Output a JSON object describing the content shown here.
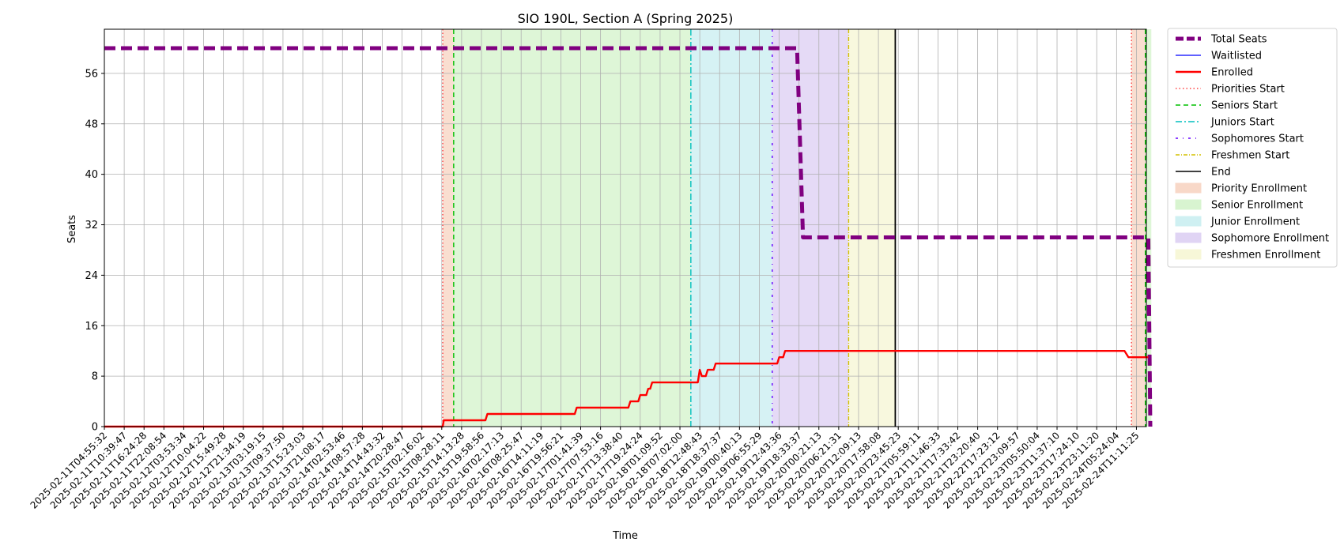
{
  "chart_data": {
    "type": "line",
    "title": "SIO 190L, Section A (Spring 2025)",
    "xlabel": "Time",
    "ylabel": "Seats",
    "ylim": [
      0,
      63
    ],
    "yticks": [
      0,
      8,
      16,
      24,
      32,
      40,
      48,
      56
    ],
    "grid": true,
    "legend_position": "outside-top-right",
    "x_tick_labels": [
      "2025-02-11T04:55:32",
      "2025-02-11T10:39:47",
      "2025-02-11T16:24:28",
      "2025-02-11T22:08:54",
      "2025-02-12T03:53:34",
      "2025-02-12T10:04:22",
      "2025-02-12T15:49:28",
      "2025-02-12T21:34:19",
      "2025-02-13T03:19:15",
      "2025-02-13T09:37:50",
      "2025-02-13T15:23:03",
      "2025-02-13T21:08:17",
      "2025-02-14T02:53:46",
      "2025-02-14T08:57:28",
      "2025-02-14T14:43:32",
      "2025-02-14T20:28:47",
      "2025-02-15T02:16:02",
      "2025-02-15T08:28:11",
      "2025-02-15T14:13:28",
      "2025-02-15T19:58:56",
      "2025-02-16T02:17:13",
      "2025-02-16T08:25:47",
      "2025-02-16T14:11:19",
      "2025-02-16T19:56:21",
      "2025-02-17T01:41:39",
      "2025-02-17T07:53:16",
      "2025-02-17T13:38:40",
      "2025-02-17T19:24:24",
      "2025-02-18T01:09:52",
      "2025-02-18T07:02:00",
      "2025-02-18T12:48:43",
      "2025-02-18T18:37:37",
      "2025-02-19T00:40:13",
      "2025-02-19T06:55:29",
      "2025-02-19T12:43:36",
      "2025-02-19T18:33:37",
      "2025-02-20T00:21:13",
      "2025-02-20T06:21:31",
      "2025-02-20T12:09:13",
      "2025-02-20T17:58:08",
      "2025-02-20T23:45:23",
      "2025-02-21T05:59:11",
      "2025-02-21T11:46:33",
      "2025-02-21T17:33:42",
      "2025-02-21T23:20:40",
      "2025-02-22T17:23:12",
      "2025-02-22T23:09:57",
      "2025-02-23T05:50:04",
      "2025-02-23T11:37:10",
      "2025-02-23T17:24:10",
      "2025-02-23T23:11:20",
      "2025-02-24T05:24:04",
      "2025-02-24T11:11:25"
    ],
    "x_range_ticks": [
      0,
      52.5
    ],
    "series": [
      {
        "name": "Total Seats",
        "color": "#800080",
        "style": "dashed-thick",
        "points": [
          [
            0,
            60
          ],
          [
            34.5,
            60
          ],
          [
            34.9,
            60
          ],
          [
            35.2,
            30
          ],
          [
            52.3,
            30
          ],
          [
            52.6,
            30
          ],
          [
            52.7,
            0
          ]
        ]
      },
      {
        "name": "Waitlisted",
        "color": "#0000ff",
        "style": "solid-thin",
        "points": []
      },
      {
        "name": "Enrolled",
        "color": "#ff0000",
        "style": "solid",
        "points": [
          [
            0,
            0
          ],
          [
            17.05,
            0
          ],
          [
            17.1,
            1
          ],
          [
            19.2,
            1
          ],
          [
            19.3,
            2
          ],
          [
            23.7,
            2
          ],
          [
            23.8,
            3
          ],
          [
            26.4,
            3
          ],
          [
            26.5,
            4
          ],
          [
            26.9,
            4
          ],
          [
            27.0,
            5
          ],
          [
            27.3,
            5
          ],
          [
            27.4,
            6
          ],
          [
            27.5,
            6
          ],
          [
            27.6,
            7
          ],
          [
            29.9,
            7
          ],
          [
            30.0,
            9
          ],
          [
            30.1,
            8
          ],
          [
            30.3,
            8
          ],
          [
            30.4,
            9
          ],
          [
            30.7,
            9
          ],
          [
            30.8,
            10
          ],
          [
            33.9,
            10
          ],
          [
            34.0,
            11
          ],
          [
            34.2,
            11
          ],
          [
            34.3,
            12
          ],
          [
            51.4,
            12
          ],
          [
            51.6,
            11
          ],
          [
            52.6,
            11
          ]
        ]
      }
    ],
    "phase_markers": [
      {
        "name": "Priorities Start",
        "color": "#ff4040",
        "style": "dotted",
        "x": 17.05
      },
      {
        "name": "Seniors Start",
        "color": "#00c000",
        "style": "dashed",
        "x": 17.6
      },
      {
        "name": "Juniors Start",
        "color": "#00bfbf",
        "style": "dashdot",
        "x": 29.55
      },
      {
        "name": "Sophomores Start",
        "color": "#6600ff",
        "style": "dotdash-sparse",
        "x": 33.65
      },
      {
        "name": "Freshmen Start",
        "color": "#d4c000",
        "style": "dashdot-fine",
        "x": 37.5
      },
      {
        "name": "End",
        "color": "#000000",
        "style": "solid",
        "x": 39.85
      }
    ],
    "phase_markers_repeat": [
      {
        "name": "Priorities Start",
        "x": 51.75
      },
      {
        "name": "Seniors Start",
        "x": 52.45
      }
    ],
    "spans": [
      {
        "name": "Priority Enrollment",
        "color": "#f8d8c8",
        "x0": 17.05,
        "x1": 17.6
      },
      {
        "name": "Senior Enrollment",
        "color": "#d8f4d0",
        "x0": 17.6,
        "x1": 29.55
      },
      {
        "name": "Junior Enrollment",
        "color": "#cff0f2",
        "x0": 29.55,
        "x1": 33.65
      },
      {
        "name": "Sophomore Enrollment",
        "color": "#e0d4f4",
        "x0": 33.65,
        "x1": 37.5
      },
      {
        "name": "Freshmen Enrollment",
        "color": "#f7f7d8",
        "x0": 37.5,
        "x1": 39.85
      },
      {
        "name": "Priority Enrollment",
        "color": "#f8d8c8",
        "x0": 51.75,
        "x1": 52.45
      },
      {
        "name": "Senior Enrollment",
        "color": "#d8f4d0",
        "x0": 52.45,
        "x1": 52.75
      }
    ],
    "legend": [
      "Total Seats",
      "Waitlisted",
      "Enrolled",
      "Priorities Start",
      "Seniors Start",
      "Juniors Start",
      "Sophomores Start",
      "Freshmen Start",
      "End",
      "Priority Enrollment",
      "Senior Enrollment",
      "Junior Enrollment",
      "Sophomore Enrollment",
      "Freshmen Enrollment"
    ]
  }
}
